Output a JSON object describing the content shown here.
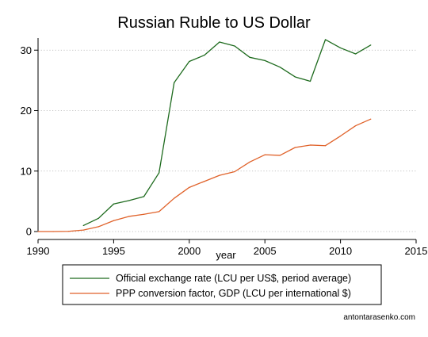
{
  "chart_data": {
    "type": "line",
    "title": "Russian Ruble to US Dollar",
    "xlabel": "year",
    "ylabel": "",
    "xlim": [
      1990,
      2015
    ],
    "ylim": [
      0,
      32
    ],
    "x_ticks": [
      1990,
      1995,
      2000,
      2005,
      2010,
      2015
    ],
    "y_ticks": [
      0,
      10,
      20,
      30
    ],
    "grid": "horizontal dotted",
    "legend_position": "bottom",
    "credit": "antontarasenko.com",
    "colors": {
      "official": "#1e6b1e",
      "ppp": "#e0622a",
      "axis": "#000000",
      "grid": "#b0b0b0"
    },
    "series": [
      {
        "name": "Official exchange rate (LCU per US$, period average)",
        "x": [
          1993,
          1994,
          1995,
          1996,
          1997,
          1998,
          1999,
          2000,
          2001,
          2002,
          2003,
          2004,
          2005,
          2006,
          2007,
          2008,
          2009,
          2010,
          2011,
          2012
        ],
        "values": [
          0.99,
          2.19,
          4.56,
          5.12,
          5.79,
          9.71,
          24.62,
          28.13,
          29.17,
          31.35,
          30.69,
          28.81,
          28.28,
          27.19,
          25.58,
          24.85,
          31.74,
          30.37,
          29.38,
          30.84
        ]
      },
      {
        "name": "PPP conversion factor, GDP (LCU per international $)",
        "x": [
          1990,
          1991,
          1992,
          1993,
          1994,
          1995,
          1996,
          1997,
          1998,
          1999,
          2000,
          2001,
          2002,
          2003,
          2004,
          2005,
          2006,
          2007,
          2008,
          2009,
          2010,
          2011,
          2012
        ],
        "values": [
          0.001,
          0.002,
          0.03,
          0.25,
          0.8,
          1.8,
          2.5,
          2.85,
          3.3,
          5.5,
          7.3,
          8.3,
          9.3,
          9.9,
          11.5,
          12.7,
          12.6,
          13.9,
          14.3,
          14.2,
          15.8,
          17.5,
          18.6
        ]
      }
    ]
  }
}
